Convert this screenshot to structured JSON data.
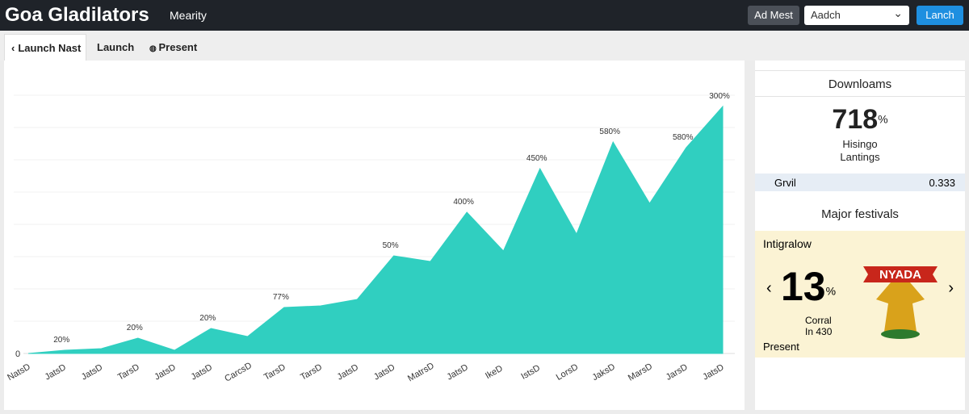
{
  "header": {
    "title": "Goa Gladilators",
    "subtitle": "Mearity",
    "button": "Ad Mest",
    "search": "Aadch",
    "launch": "Lanch"
  },
  "tabs": [
    "Launch Nast",
    "Launch",
    "Present"
  ],
  "chart_data": {
    "type": "area",
    "categories": [
      "NatsD",
      "JatsD",
      "JatsD",
      "TarsD",
      "JatsD",
      "JatsD",
      "CarcsD",
      "TarsD",
      "TarsD",
      "JatsD",
      "JatsD",
      "MatrsD",
      "JatsD",
      "IkeD",
      "IstsD",
      "LorsD",
      "JaksD",
      "MarsD",
      "JarsD",
      "JatsD"
    ],
    "values": [
      0,
      4,
      6,
      19,
      4,
      31,
      21,
      57,
      59,
      67,
      121,
      114,
      175,
      127,
      229,
      148,
      262,
      186,
      255,
      306
    ],
    "annotations": [
      {
        "text": "20%",
        "index": 1
      },
      {
        "text": "20%",
        "index": 3
      },
      {
        "text": "20%",
        "index": 5
      },
      {
        "text": "77%",
        "index": 7
      },
      {
        "text": "50%",
        "index": 10
      },
      {
        "text": "400%",
        "index": 12
      },
      {
        "text": "450%",
        "index": 14
      },
      {
        "text": "580%",
        "index": 16
      },
      {
        "text": "580%",
        "index": 18
      },
      {
        "text": "300%",
        "index": 19
      }
    ],
    "color": "#30cfc0",
    "ylim": [
      0,
      320
    ],
    "yticks": [
      0
    ],
    "grid": true
  },
  "downloads": {
    "title": "Downloams",
    "value": "718",
    "unit": "%",
    "line1": "Hisingo",
    "line2": "Lantings",
    "row_label": "Grvil",
    "row_value": "0.333"
  },
  "festivals": {
    "title": "Major festivals",
    "heading": "Intigralow",
    "value": "13",
    "unit": "%",
    "line1": "Corral",
    "line2": "In 430",
    "footer": "Present",
    "badge": "NYADA"
  }
}
